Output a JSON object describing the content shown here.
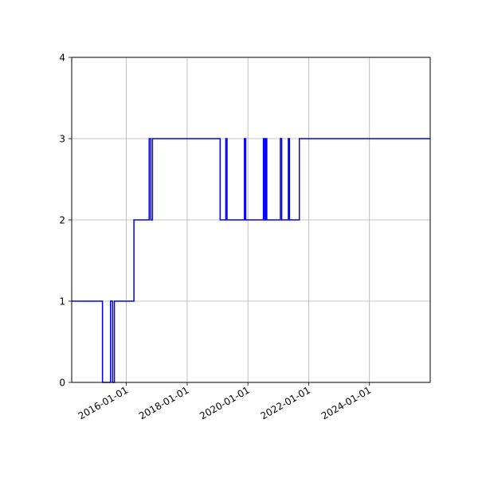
{
  "chart_data": {
    "type": "line",
    "title": "",
    "xlabel": "",
    "ylabel": "",
    "x_axis_type": "date",
    "xlim": [
      "2014-03-15",
      "2025-12-31"
    ],
    "ylim": [
      0,
      4
    ],
    "x_ticks": [
      "2016-01-01",
      "2018-01-01",
      "2020-01-01",
      "2022-01-01",
      "2024-01-01"
    ],
    "y_ticks": [
      0,
      1,
      2,
      3,
      4
    ],
    "grid": true,
    "legend": "none",
    "colors": {
      "line": "#0000ff",
      "grid": "#b0b0b0",
      "axes": "#000000"
    },
    "series": [
      {
        "step": "post",
        "points": [
          {
            "x": "2014-03-15",
            "y": 1
          },
          {
            "x": "2015-03-20",
            "y": 0
          },
          {
            "x": "2015-06-25",
            "y": 1
          },
          {
            "x": "2015-07-20",
            "y": 0
          },
          {
            "x": "2015-08-10",
            "y": 1
          },
          {
            "x": "2016-04-01",
            "y": 2
          },
          {
            "x": "2016-10-01",
            "y": 3
          },
          {
            "x": "2016-10-20",
            "y": 2
          },
          {
            "x": "2016-11-10",
            "y": 3
          },
          {
            "x": "2019-02-01",
            "y": 2
          },
          {
            "x": "2019-04-10",
            "y": 3
          },
          {
            "x": "2019-04-25",
            "y": 2
          },
          {
            "x": "2019-11-20",
            "y": 3
          },
          {
            "x": "2019-12-05",
            "y": 2
          },
          {
            "x": "2020-07-05",
            "y": 3
          },
          {
            "x": "2020-07-20",
            "y": 2
          },
          {
            "x": "2020-08-01",
            "y": 3
          },
          {
            "x": "2020-08-15",
            "y": 2
          },
          {
            "x": "2021-01-25",
            "y": 3
          },
          {
            "x": "2021-02-10",
            "y": 2
          },
          {
            "x": "2021-05-01",
            "y": 3
          },
          {
            "x": "2021-05-15",
            "y": 2
          },
          {
            "x": "2021-09-10",
            "y": 3
          },
          {
            "x": "2025-12-31",
            "y": 3
          }
        ]
      }
    ]
  }
}
